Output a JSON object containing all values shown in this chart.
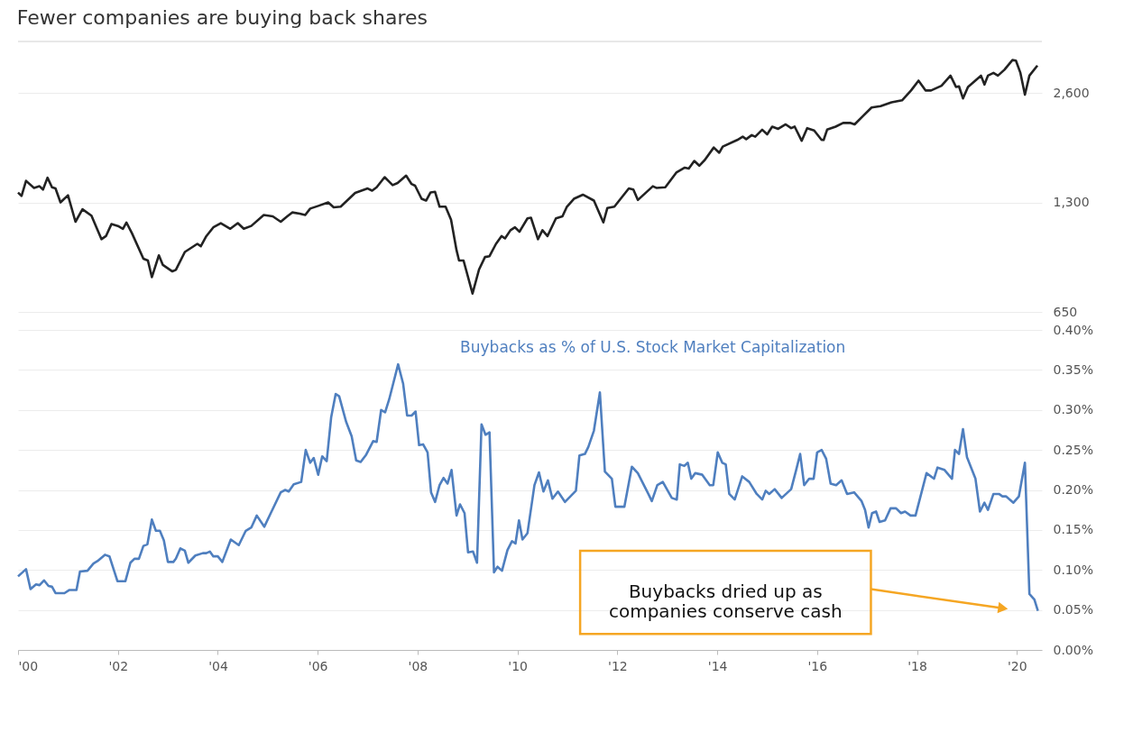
{
  "chart_data": [
    {
      "type": "line",
      "title": "Fewer companies are buying back shares",
      "log": "y",
      "grid": "y",
      "tick_labels": "y",
      "x": [
        2000.0,
        2000.07,
        2000.16,
        2000.32,
        2000.43,
        2000.5,
        2000.59,
        2000.68,
        2000.75,
        2000.85,
        2001.0,
        2001.15,
        2001.29,
        2001.47,
        2001.67,
        2001.76,
        2001.87,
        2002.0,
        2002.1,
        2002.17,
        2002.28,
        2002.51,
        2002.6,
        2002.68,
        2002.82,
        2002.9,
        2003.09,
        2003.16,
        2003.34,
        2003.59,
        2003.66,
        2003.77,
        2003.91,
        2004.06,
        2004.25,
        2004.4,
        2004.52,
        2004.67,
        2004.92,
        2005.1,
        2005.26,
        2005.39,
        2005.49,
        2005.64,
        2005.75,
        2005.85,
        2006.0,
        2006.21,
        2006.32,
        2006.46,
        2006.75,
        2007.0,
        2007.09,
        2007.18,
        2007.34,
        2007.5,
        2007.6,
        2007.77,
        2007.88,
        2007.95,
        2008.08,
        2008.17,
        2008.26,
        2008.35,
        2008.44,
        2008.56,
        2008.67,
        2008.78,
        2008.83,
        2008.92,
        2009.1,
        2009.23,
        2009.35,
        2009.44,
        2009.57,
        2009.68,
        2009.75,
        2009.86,
        2009.95,
        2010.04,
        2010.2,
        2010.27,
        2010.41,
        2010.5,
        2010.6,
        2010.77,
        2010.9,
        2010.99,
        2011.13,
        2011.31,
        2011.53,
        2011.72,
        2011.8,
        2011.94,
        2012.23,
        2012.32,
        2012.41,
        2012.71,
        2012.78,
        2012.96,
        2013.18,
        2013.35,
        2013.43,
        2013.54,
        2013.64,
        2013.75,
        2013.93,
        2014.04,
        2014.11,
        2014.4,
        2014.51,
        2014.58,
        2014.69,
        2014.76,
        2014.9,
        2015.0,
        2015.1,
        2015.22,
        2015.37,
        2015.48,
        2015.55,
        2015.69,
        2015.8,
        2015.94,
        2016.09,
        2016.13,
        2016.2,
        2016.37,
        2016.52,
        2016.66,
        2016.75,
        2016.91,
        2017.09,
        2017.27,
        2017.49,
        2017.7,
        2017.88,
        2018.03,
        2018.17,
        2018.28,
        2018.49,
        2018.67,
        2018.78,
        2018.84,
        2018.92,
        2019.02,
        2019.28,
        2019.35,
        2019.42,
        2019.53,
        2019.62,
        2019.75,
        2019.91,
        2019.98,
        2020.07,
        2020.16,
        2020.25,
        2020.41
      ],
      "series": [
        {
          "color": "#222222",
          "values": [
            1383,
            1354,
            1490,
            1425,
            1440,
            1410,
            1520,
            1430,
            1420,
            1300,
            1360,
            1150,
            1245,
            1195,
            1030,
            1050,
            1133,
            1120,
            1100,
            1145,
            1070,
            910,
            900,
            810,
            930,
            875,
            840,
            848,
            950,
            1000,
            985,
            1050,
            1110,
            1140,
            1100,
            1140,
            1100,
            1120,
            1200,
            1190,
            1150,
            1190,
            1220,
            1210,
            1200,
            1250,
            1270,
            1300,
            1260,
            1265,
            1380,
            1420,
            1400,
            1430,
            1525,
            1450,
            1470,
            1540,
            1460,
            1445,
            1330,
            1315,
            1385,
            1390,
            1265,
            1265,
            1165,
            960,
            900,
            900,
            730,
            850,
            920,
            925,
            1000,
            1050,
            1035,
            1090,
            1110,
            1080,
            1175,
            1180,
            1030,
            1090,
            1050,
            1175,
            1190,
            1265,
            1330,
            1365,
            1315,
            1145,
            1255,
            1265,
            1420,
            1410,
            1320,
            1440,
            1425,
            1430,
            1570,
            1620,
            1610,
            1690,
            1640,
            1700,
            1840,
            1780,
            1850,
            1930,
            1970,
            1940,
            1990,
            1970,
            2060,
            2000,
            2100,
            2070,
            2130,
            2080,
            2100,
            1920,
            2080,
            2050,
            1930,
            1930,
            2060,
            2100,
            2150,
            2150,
            2130,
            2240,
            2370,
            2390,
            2450,
            2480,
            2640,
            2810,
            2640,
            2640,
            2720,
            2900,
            2700,
            2710,
            2510,
            2700,
            2900,
            2740,
            2900,
            2950,
            2900,
            3010,
            3200,
            3190,
            2950,
            2570,
            2900,
            3090
          ]
        }
      ],
      "xlim": [
        2000,
        2020.5
      ],
      "ylim": [
        650,
        3600
      ],
      "yticks": [
        650,
        {
          "value": 1300,
          "label": "1,300"
        },
        {
          "value": 2600,
          "label": "2,600"
        }
      ]
    },
    {
      "type": "line",
      "grid": "y",
      "x": [
        2000.0,
        2000.16,
        2000.25,
        2000.36,
        2000.43,
        2000.52,
        2000.61,
        2000.68,
        2000.75,
        2000.93,
        2001.03,
        2001.17,
        2001.24,
        2001.39,
        2001.51,
        2001.59,
        2001.74,
        2001.83,
        2001.99,
        2002.15,
        2002.25,
        2002.33,
        2002.42,
        2002.51,
        2002.59,
        2002.68,
        2002.76,
        2002.84,
        2002.92,
        2003.0,
        2003.11,
        2003.16,
        2003.25,
        2003.34,
        2003.41,
        2003.55,
        2003.7,
        2003.77,
        2003.84,
        2003.91,
        2004.0,
        2004.09,
        2004.26,
        2004.42,
        2004.56,
        2004.67,
        2004.78,
        2004.93,
        2005.06,
        2005.26,
        2005.35,
        2005.42,
        2005.52,
        2005.67,
        2005.76,
        2005.85,
        2005.92,
        2006.01,
        2006.09,
        2006.18,
        2006.27,
        2006.36,
        2006.43,
        2006.57,
        2006.68,
        2006.77,
        2006.86,
        2006.97,
        2007.11,
        2007.18,
        2007.27,
        2007.35,
        2007.43,
        2007.61,
        2007.71,
        2007.79,
        2007.88,
        2007.96,
        2008.03,
        2008.11,
        2008.2,
        2008.27,
        2008.35,
        2008.44,
        2008.52,
        2008.6,
        2008.68,
        2008.78,
        2008.85,
        2008.94,
        2009.01,
        2009.11,
        2009.19,
        2009.28,
        2009.36,
        2009.44,
        2009.53,
        2009.6,
        2009.69,
        2009.8,
        2009.89,
        2009.96,
        2010.03,
        2010.1,
        2010.2,
        2010.34,
        2010.43,
        2010.52,
        2010.61,
        2010.7,
        2010.81,
        2010.95,
        2011.17,
        2011.24,
        2011.35,
        2011.42,
        2011.53,
        2011.65,
        2011.75,
        2011.89,
        2011.96,
        2012.14,
        2012.29,
        2012.41,
        2012.62,
        2012.69,
        2012.8,
        2012.91,
        2013.09,
        2013.19,
        2013.25,
        2013.34,
        2013.41,
        2013.48,
        2013.56,
        2013.7,
        2013.85,
        2013.92,
        2014.01,
        2014.1,
        2014.17,
        2014.24,
        2014.35,
        2014.5,
        2014.64,
        2014.79,
        2014.9,
        2014.97,
        2015.04,
        2015.15,
        2015.29,
        2015.48,
        2015.58,
        2015.66,
        2015.74,
        2015.84,
        2015.93,
        2016.0,
        2016.09,
        2016.18,
        2016.27,
        2016.38,
        2016.49,
        2016.6,
        2016.74,
        2016.89,
        2016.96,
        2017.03,
        2017.1,
        2017.18,
        2017.25,
        2017.36,
        2017.47,
        2017.58,
        2017.68,
        2017.76,
        2017.87,
        2017.97,
        2018.19,
        2018.34,
        2018.41,
        2018.55,
        2018.7,
        2018.76,
        2018.84,
        2018.92,
        2019.0,
        2019.17,
        2019.26,
        2019.35,
        2019.42,
        2019.53,
        2019.64,
        2019.71,
        2019.78,
        2019.93,
        2020.04,
        2020.16,
        2020.25,
        2020.35,
        2020.42
      ],
      "series": [
        {
          "name": "Buybacks as % of U.S. Stock Market Capitalization",
          "color": "#4f7fbf",
          "values": [
            0.092,
            0.101,
            0.076,
            0.082,
            0.081,
            0.087,
            0.08,
            0.079,
            0.071,
            0.071,
            0.075,
            0.075,
            0.098,
            0.099,
            0.108,
            0.111,
            0.119,
            0.117,
            0.086,
            0.086,
            0.109,
            0.114,
            0.114,
            0.13,
            0.132,
            0.163,
            0.149,
            0.149,
            0.137,
            0.11,
            0.11,
            0.114,
            0.127,
            0.124,
            0.109,
            0.118,
            0.121,
            0.121,
            0.123,
            0.117,
            0.117,
            0.11,
            0.138,
            0.131,
            0.149,
            0.153,
            0.168,
            0.154,
            0.171,
            0.197,
            0.2,
            0.198,
            0.207,
            0.21,
            0.25,
            0.234,
            0.24,
            0.219,
            0.242,
            0.236,
            0.291,
            0.32,
            0.317,
            0.285,
            0.267,
            0.237,
            0.235,
            0.244,
            0.261,
            0.26,
            0.3,
            0.297,
            0.313,
            0.357,
            0.333,
            0.293,
            0.293,
            0.298,
            0.256,
            0.257,
            0.247,
            0.197,
            0.185,
            0.206,
            0.215,
            0.208,
            0.225,
            0.168,
            0.182,
            0.171,
            0.122,
            0.123,
            0.109,
            0.282,
            0.269,
            0.272,
            0.097,
            0.104,
            0.099,
            0.125,
            0.136,
            0.133,
            0.162,
            0.138,
            0.146,
            0.206,
            0.222,
            0.198,
            0.212,
            0.189,
            0.198,
            0.185,
            0.199,
            0.243,
            0.245,
            0.254,
            0.274,
            0.322,
            0.223,
            0.214,
            0.179,
            0.179,
            0.229,
            0.221,
            0.195,
            0.186,
            0.206,
            0.21,
            0.19,
            0.188,
            0.232,
            0.23,
            0.234,
            0.214,
            0.221,
            0.219,
            0.206,
            0.206,
            0.247,
            0.234,
            0.232,
            0.195,
            0.188,
            0.217,
            0.21,
            0.195,
            0.188,
            0.199,
            0.195,
            0.201,
            0.19,
            0.201,
            0.225,
            0.245,
            0.206,
            0.214,
            0.214,
            0.247,
            0.25,
            0.239,
            0.208,
            0.206,
            0.212,
            0.195,
            0.197,
            0.186,
            0.175,
            0.153,
            0.171,
            0.173,
            0.16,
            0.162,
            0.177,
            0.177,
            0.171,
            0.173,
            0.168,
            0.168,
            0.221,
            0.214,
            0.228,
            0.225,
            0.214,
            0.25,
            0.245,
            0.276,
            0.241,
            0.214,
            0.173,
            0.184,
            0.175,
            0.195,
            0.195,
            0.192,
            0.192,
            0.184,
            0.192,
            0.234,
            0.07,
            0.063,
            0.049
          ]
        }
      ],
      "xlim": [
        2000,
        2020.5
      ],
      "ylim": [
        0,
        0.4
      ],
      "xticks": [
        {
          "value": 2000,
          "label": "'00"
        },
        {
          "value": 2002,
          "label": "'02"
        },
        {
          "value": 2004,
          "label": "'04"
        },
        {
          "value": 2006,
          "label": "'06"
        },
        {
          "value": 2008,
          "label": "'08"
        },
        {
          "value": 2010,
          "label": "'10"
        },
        {
          "value": 2012,
          "label": "'12"
        },
        {
          "value": 2014,
          "label": "'14"
        },
        {
          "value": 2016,
          "label": "'16"
        },
        {
          "value": 2018,
          "label": "'18"
        },
        {
          "value": 2020,
          "label": "'20"
        }
      ],
      "yticks": [
        {
          "value": 0,
          "label": "0.00%"
        },
        {
          "value": 0.05,
          "label": "0.05%"
        },
        {
          "value": 0.1,
          "label": "0.10%"
        },
        {
          "value": 0.15,
          "label": "0.15%"
        },
        {
          "value": 0.2,
          "label": "0.20%"
        },
        {
          "value": 0.25,
          "label": "0.25%"
        },
        {
          "value": 0.3,
          "label": "0.30%"
        },
        {
          "value": 0.35,
          "label": "0.35%"
        },
        {
          "value": 0.4,
          "label": "0.40%"
        }
      ],
      "annotations": [
        "Buybacks dried up as\ncompanies conserve cash"
      ]
    }
  ]
}
